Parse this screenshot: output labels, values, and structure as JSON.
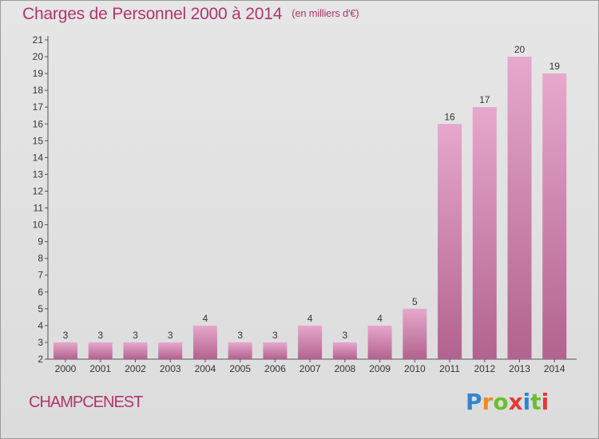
{
  "header": {
    "title": "Charges de Personnel 2000 à 2014",
    "subtitle": "(en milliers d'€)"
  },
  "footer": {
    "location": "CHAMPCENEST",
    "logo_letters": [
      "P",
      "r",
      "o",
      "x",
      "i",
      "t",
      "i"
    ]
  },
  "colors": {
    "bar_top": "#e6a8cc",
    "bar_bottom": "#b2628e",
    "title": "#b0356e"
  },
  "chart_data": {
    "type": "bar",
    "title": "Charges de Personnel 2000 à 2014",
    "subtitle": "(en milliers d'€)",
    "categories": [
      "2000",
      "2001",
      "2002",
      "2003",
      "2004",
      "2005",
      "2006",
      "2007",
      "2008",
      "2009",
      "2010",
      "2011",
      "2012",
      "2013",
      "2014"
    ],
    "values": [
      3,
      3,
      3,
      3,
      4,
      3,
      3,
      4,
      3,
      4,
      5,
      16,
      17,
      20,
      19
    ],
    "ylim": [
      2,
      21
    ],
    "yticks": [
      2,
      3,
      4,
      5,
      6,
      7,
      8,
      9,
      10,
      11,
      12,
      13,
      14,
      15,
      16,
      17,
      18,
      19,
      20,
      21
    ],
    "grid": false,
    "xlabel": "",
    "ylabel": ""
  }
}
